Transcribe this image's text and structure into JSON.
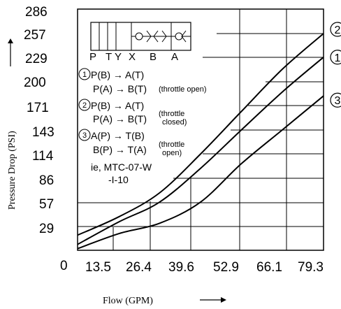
{
  "chart_data": {
    "type": "line",
    "xlabel": "Flow    (GPM)",
    "ylabel": "Pressure Drop  (PSI)",
    "x_ticks": [
      "0",
      "13.5",
      "26.4",
      "39.6",
      "52.9",
      "66.1",
      "79.3"
    ],
    "y_ticks": [
      "29",
      "57",
      "86",
      "114",
      "143",
      "171",
      "200",
      "229",
      "257",
      "286"
    ],
    "xlim": [
      0,
      79.3
    ],
    "ylim": [
      0,
      286
    ],
    "grid": true,
    "series": [
      {
        "name": "2",
        "x": [
          0,
          13.5,
          26.4,
          39.6,
          52.9,
          66.1,
          79.3
        ],
        "y": [
          18,
          40,
          68,
          114,
          165,
          215,
          257
        ]
      },
      {
        "name": "1",
        "x": [
          0,
          13.5,
          26.4,
          39.6,
          52.9,
          66.1,
          79.3
        ],
        "y": [
          7,
          34,
          57,
          97,
          143,
          188,
          229
        ]
      },
      {
        "name": "3",
        "x": [
          0,
          13.5,
          26.4,
          39.6,
          52.9,
          66.1,
          79.3
        ],
        "y": [
          2,
          20,
          32,
          57,
          103,
          143,
          183
        ]
      }
    ],
    "annotations": {
      "ports": [
        "P",
        "T",
        "Y",
        "X",
        "B",
        "A"
      ],
      "mode1": {
        "marker": "1",
        "line1": "P(B) → A(T)",
        "line2": "P(A) → B(T)",
        "note": "(throttle  open)"
      },
      "mode2": {
        "marker": "2",
        "line1": "P(B) → A(T)",
        "line2": "P(A) → B(T)",
        "note1": "(throttle",
        "note2": "closed)"
      },
      "mode3": {
        "marker": "3",
        "line1": "A(P) → T(B)",
        "line2": "B(P) → T(A)",
        "note1": "(throttle",
        "note2": "open)"
      },
      "example1": "ie, MTC-07-W",
      "example2": "-I-10"
    }
  }
}
